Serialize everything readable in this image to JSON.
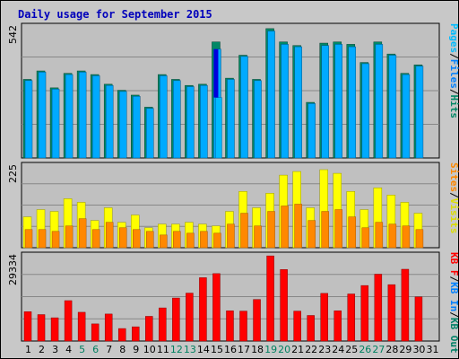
{
  "title": "Daily usage for September 2015",
  "colors": {
    "background": "#c8c8c8",
    "panel": "#c0c0c0",
    "pages": "#00bbff",
    "pages_dark": "#0066aa",
    "files": "#00aaff",
    "hits": "#008866",
    "hits_dark": "#004433",
    "sites": "#ff8800",
    "visits": "#ffff00",
    "kbf": "#ff0000",
    "kbin": "#0080ff",
    "kbout": "#008066",
    "highlight": "#0000dd",
    "weekend": "#008060",
    "weekday": "#000000"
  },
  "chart_data": [
    {
      "type": "bar",
      "name": "pages-files-hits",
      "ymax_label": "542",
      "ylim": [
        0,
        542
      ],
      "categories": [
        "1",
        "2",
        "3",
        "4",
        "5",
        "6",
        "7",
        "8",
        "9",
        "10",
        "11",
        "12",
        "13",
        "14",
        "15",
        "16",
        "17",
        "18",
        "19",
        "20",
        "21",
        "22",
        "23",
        "24",
        "25",
        "26",
        "27",
        "28",
        "29",
        "30",
        "31"
      ],
      "weekend_days": [
        "5",
        "6",
        "12",
        "13",
        "19",
        "20",
        "26",
        "27"
      ],
      "series": [
        {
          "name": "Hits",
          "values": [
            325,
            360,
            290,
            350,
            360,
            345,
            305,
            280,
            260,
            210,
            345,
            325,
            300,
            305,
            480,
            330,
            425,
            325,
            535,
            480,
            465,
            230,
            475,
            480,
            470,
            395,
            480,
            430,
            350,
            385,
            0
          ]
        },
        {
          "name": "Files",
          "values": [
            320,
            355,
            285,
            345,
            355,
            340,
            300,
            275,
            255,
            205,
            340,
            320,
            295,
            300,
            450,
            325,
            420,
            320,
            525,
            470,
            460,
            225,
            465,
            470,
            460,
            390,
            470,
            425,
            345,
            380,
            0
          ]
        },
        {
          "name": "Pages",
          "values": [
            0,
            0,
            0,
            0,
            0,
            0,
            0,
            0,
            0,
            0,
            0,
            0,
            0,
            0,
            250,
            0,
            0,
            0,
            0,
            0,
            0,
            0,
            0,
            0,
            0,
            0,
            0,
            0,
            0,
            0,
            0
          ]
        }
      ],
      "side_labels": [
        {
          "text": "Pages",
          "color": "#00bbff"
        },
        {
          "text": "/",
          "color": "#000000"
        },
        {
          "text": "Files",
          "color": "#0080ff"
        },
        {
          "text": "/",
          "color": "#000000"
        },
        {
          "text": "Hits",
          "color": "#008866"
        }
      ]
    },
    {
      "type": "bar",
      "name": "visits-sites",
      "ymax_label": "225",
      "ylim": [
        0,
        225
      ],
      "categories": [
        "1",
        "2",
        "3",
        "4",
        "5",
        "6",
        "7",
        "8",
        "9",
        "10",
        "11",
        "12",
        "13",
        "14",
        "15",
        "16",
        "17",
        "18",
        "19",
        "20",
        "21",
        "22",
        "23",
        "24",
        "25",
        "26",
        "27",
        "28",
        "29",
        "30",
        "31"
      ],
      "series": [
        {
          "name": "Visits",
          "values": [
            85,
            105,
            100,
            135,
            125,
            75,
            110,
            70,
            90,
            55,
            65,
            65,
            70,
            65,
            60,
            100,
            155,
            110,
            150,
            200,
            210,
            110,
            215,
            205,
            155,
            105,
            165,
            145,
            125,
            95,
            0
          ]
        },
        {
          "name": "Sites",
          "values": [
            50,
            50,
            45,
            60,
            80,
            50,
            70,
            55,
            50,
            45,
            35,
            45,
            40,
            45,
            40,
            65,
            95,
            60,
            100,
            115,
            120,
            75,
            100,
            105,
            85,
            55,
            70,
            65,
            60,
            50,
            0
          ]
        }
      ],
      "side_labels": [
        {
          "text": "Sites",
          "color": "#ff8800"
        },
        {
          "text": "/",
          "color": "#000000"
        },
        {
          "text": "Visits",
          "color": "#dddd00"
        }
      ]
    },
    {
      "type": "bar",
      "name": "kbytes",
      "ymax_label": "29334",
      "ylim": [
        0,
        29334
      ],
      "categories": [
        "1",
        "2",
        "3",
        "4",
        "5",
        "6",
        "7",
        "8",
        "9",
        "10",
        "11",
        "12",
        "13",
        "14",
        "15",
        "16",
        "17",
        "18",
        "19",
        "20",
        "21",
        "22",
        "23",
        "24",
        "25",
        "26",
        "27",
        "28",
        "29",
        "30",
        "31"
      ],
      "series": [
        {
          "name": "KB F",
          "values": [
            10100,
            9100,
            8000,
            13900,
            9900,
            5900,
            9300,
            4300,
            4900,
            8500,
            11400,
            14800,
            16500,
            21800,
            23200,
            10400,
            10300,
            14300,
            29300,
            24600,
            10300,
            8800,
            16400,
            10400,
            16200,
            19100,
            23000,
            19400,
            24700,
            15200,
            0
          ]
        }
      ],
      "side_labels": [
        {
          "text": "KB F",
          "color": "#ff0000"
        },
        {
          "text": "/",
          "color": "#000000"
        },
        {
          "text": "KB In",
          "color": "#0080ff"
        },
        {
          "text": "/",
          "color": "#000000"
        },
        {
          "text": "KB Out",
          "color": "#008066"
        }
      ]
    }
  ]
}
